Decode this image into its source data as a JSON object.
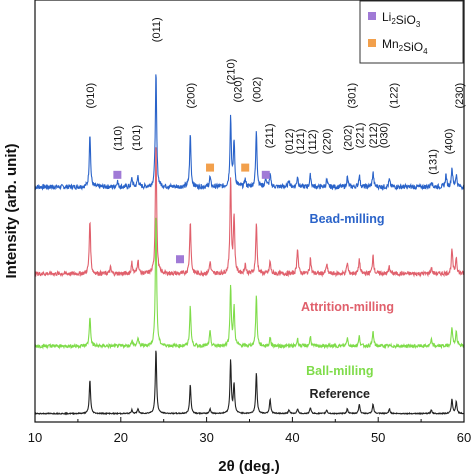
{
  "chart_data": {
    "type": "line",
    "xlabel": "2θ (deg.)",
    "ylabel": "Intensity (arb. unit)",
    "xlim": [
      10,
      60
    ],
    "xticks": [
      10,
      20,
      30,
      40,
      50,
      60
    ],
    "legend": {
      "placement": "top-right",
      "entries": [
        {
          "marker": "square",
          "color": "#a07ad6",
          "main": "Li",
          "sub1": "2",
          "mid": "SiO",
          "sub2": "3"
        },
        {
          "marker": "square",
          "color": "#f2a04c",
          "main": "Mn",
          "sub1": "2",
          "mid": "SiO",
          "sub2": "4"
        }
      ]
    },
    "series": [
      {
        "name": "Bead-milling",
        "color": "#2a63c9",
        "baseline": 1.9,
        "noise": 0.02,
        "peaks": [
          [
            16.4,
            0.45
          ],
          [
            19.6,
            0.05
          ],
          [
            21.3,
            0.07
          ],
          [
            22.0,
            0.09
          ],
          [
            24.1,
            0.95
          ],
          [
            28.1,
            0.44
          ],
          [
            30.4,
            0.08
          ],
          [
            32.8,
            0.58
          ],
          [
            33.2,
            0.38
          ],
          [
            34.5,
            0.06
          ],
          [
            35.8,
            0.47
          ],
          [
            36.9,
            0.08
          ],
          [
            37.4,
            0.1
          ],
          [
            39.6,
            0.06
          ],
          [
            40.6,
            0.09
          ],
          [
            42.1,
            0.1
          ],
          [
            44.0,
            0.06
          ],
          [
            46.4,
            0.08
          ],
          [
            47.8,
            0.1
          ],
          [
            49.4,
            0.12
          ],
          [
            51.3,
            0.06
          ],
          [
            56.2,
            0.05
          ],
          [
            57.9,
            0.1
          ],
          [
            58.6,
            0.16
          ],
          [
            59.1,
            0.1
          ]
        ]
      },
      {
        "name": "Attrition-milling",
        "color": "#e0606c",
        "baseline": 1.18,
        "noise": 0.018,
        "peaks": [
          [
            16.4,
            0.45
          ],
          [
            18.8,
            0.05
          ],
          [
            21.3,
            0.09
          ],
          [
            22.0,
            0.12
          ],
          [
            24.1,
            1.1
          ],
          [
            28.1,
            0.44
          ],
          [
            30.4,
            0.1
          ],
          [
            32.8,
            0.8
          ],
          [
            33.2,
            0.48
          ],
          [
            34.5,
            0.08
          ],
          [
            35.8,
            0.42
          ],
          [
            37.4,
            0.1
          ],
          [
            40.6,
            0.22
          ],
          [
            42.1,
            0.13
          ],
          [
            44.0,
            0.08
          ],
          [
            46.4,
            0.09
          ],
          [
            47.8,
            0.12
          ],
          [
            49.4,
            0.16
          ],
          [
            51.3,
            0.06
          ],
          [
            56.2,
            0.05
          ],
          [
            58.6,
            0.2
          ],
          [
            59.1,
            0.14
          ]
        ]
      },
      {
        "name": "Ball-milling",
        "color": "#7fdc4a",
        "baseline": 0.58,
        "noise": 0.014,
        "peaks": [
          [
            16.4,
            0.25
          ],
          [
            21.3,
            0.05
          ],
          [
            22.0,
            0.07
          ],
          [
            24.1,
            1.1
          ],
          [
            28.1,
            0.33
          ],
          [
            30.4,
            0.12
          ],
          [
            32.8,
            0.5
          ],
          [
            33.2,
            0.32
          ],
          [
            35.8,
            0.42
          ],
          [
            37.4,
            0.07
          ],
          [
            40.6,
            0.06
          ],
          [
            42.1,
            0.08
          ],
          [
            46.4,
            0.07
          ],
          [
            47.8,
            0.08
          ],
          [
            49.4,
            0.12
          ],
          [
            56.2,
            0.05
          ],
          [
            58.6,
            0.16
          ],
          [
            59.1,
            0.12
          ]
        ]
      },
      {
        "name": "Reference",
        "color": "#222222",
        "baseline": 0.02,
        "noise": 0.004,
        "peaks": [
          [
            16.4,
            0.28
          ],
          [
            21.3,
            0.03
          ],
          [
            22.0,
            0.04
          ],
          [
            24.1,
            0.54
          ],
          [
            28.1,
            0.24
          ],
          [
            30.4,
            0.04
          ],
          [
            32.8,
            0.44
          ],
          [
            33.2,
            0.24
          ],
          [
            35.8,
            0.34
          ],
          [
            37.4,
            0.12
          ],
          [
            39.6,
            0.03
          ],
          [
            40.6,
            0.04
          ],
          [
            42.1,
            0.05
          ],
          [
            44.0,
            0.03
          ],
          [
            46.4,
            0.04
          ],
          [
            47.8,
            0.08
          ],
          [
            49.4,
            0.08
          ],
          [
            51.3,
            0.04
          ],
          [
            56.2,
            0.03
          ],
          [
            58.6,
            0.12
          ],
          [
            59.1,
            0.1
          ]
        ]
      }
    ],
    "hkl_labels": [
      {
        "text": "(010)",
        "x": 16.4,
        "y": 2.55
      },
      {
        "text": "(110)",
        "x": 19.6,
        "y": 2.2
      },
      {
        "text": "(101)",
        "x": 21.8,
        "y": 2.2
      },
      {
        "text": "(011)",
        "x": 24.1,
        "y": 3.1
      },
      {
        "text": "(200)",
        "x": 28.1,
        "y": 2.55
      },
      {
        "text": "(210)",
        "x": 32.8,
        "y": 2.75
      },
      {
        "text": "(020)",
        "x": 33.6,
        "y": 2.6
      },
      {
        "text": "(002)",
        "x": 35.8,
        "y": 2.6
      },
      {
        "text": "(211)",
        "x": 37.3,
        "y": 2.22
      },
      {
        "text": "(012)",
        "x": 39.6,
        "y": 2.17
      },
      {
        "text": "(121)",
        "x": 40.9,
        "y": 2.17
      },
      {
        "text": "(112)",
        "x": 42.3,
        "y": 2.17
      },
      {
        "text": "(220)",
        "x": 44.0,
        "y": 2.17
      },
      {
        "text": "(202)",
        "x": 46.4,
        "y": 2.2
      },
      {
        "text": "(301)",
        "x": 46.9,
        "y": 2.55
      },
      {
        "text": "(221)",
        "x": 47.8,
        "y": 2.22
      },
      {
        "text": "(212)",
        "x": 49.4,
        "y": 2.22
      },
      {
        "text": "(030)",
        "x": 50.6,
        "y": 2.22
      },
      {
        "text": "(122)",
        "x": 51.8,
        "y": 2.55
      },
      {
        "text": "(131)",
        "x": 56.3,
        "y": 2.0
      },
      {
        "text": "(400)",
        "x": 58.2,
        "y": 2.17
      },
      {
        "text": "(230)",
        "x": 59.4,
        "y": 2.55
      }
    ],
    "phase_markers": [
      {
        "phase": "Li2SiO3",
        "x": 19.6,
        "y": 2.0
      },
      {
        "phase": "Li2SiO3",
        "x": 26.9,
        "y": 1.3
      },
      {
        "phase": "Li2SiO3",
        "x": 36.9,
        "y": 2.0
      },
      {
        "phase": "Mn2SiO4",
        "x": 30.4,
        "y": 2.06
      },
      {
        "phase": "Mn2SiO4",
        "x": 34.5,
        "y": 2.06
      }
    ],
    "series_labels": [
      {
        "text": "Bead-milling",
        "x": 42.0,
        "y": 1.6,
        "color": "#2a63c9"
      },
      {
        "text": "Attrition-milling",
        "x": 41.0,
        "y": 0.87,
        "color": "#e0606c"
      },
      {
        "text": "Ball-milling",
        "x": 41.6,
        "y": 0.34,
        "color": "#7fdc4a"
      },
      {
        "text": "Reference",
        "x": 42.0,
        "y": 0.15,
        "color": "#222222"
      }
    ],
    "ylim": [
      -0.05,
      3.45
    ]
  }
}
